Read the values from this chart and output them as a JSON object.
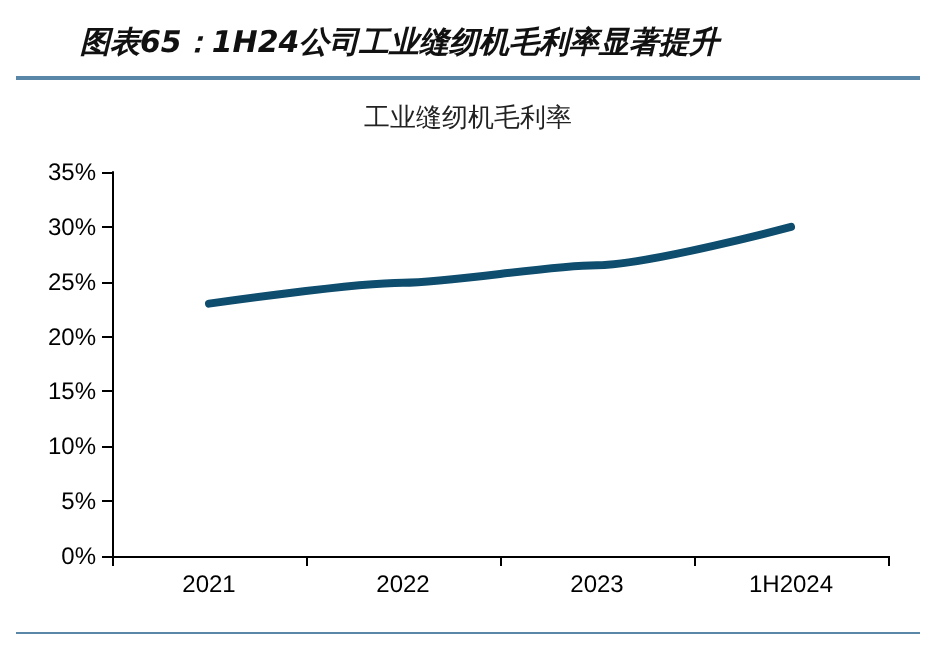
{
  "chart_data": {
    "type": "line",
    "title": "图表65：1H24公司工业缝纫机毛利率显著提升",
    "subtitle": "工业缝纫机毛利率",
    "categories": [
      "2021",
      "2022",
      "2023",
      "1H2024"
    ],
    "series": [
      {
        "color": "#0e4d6e",
        "values": [
          23.0,
          24.9,
          26.5,
          30.0
        ]
      }
    ],
    "ylim": [
      0,
      35
    ],
    "yticks": [
      {
        "value": 0,
        "label": "0%"
      },
      {
        "value": 5,
        "label": "5%"
      },
      {
        "value": 10,
        "label": "10%"
      },
      {
        "value": 15,
        "label": "15%"
      },
      {
        "value": 20,
        "label": "20%"
      },
      {
        "value": 25,
        "label": "25%"
      },
      {
        "value": 30,
        "label": "30%"
      },
      {
        "value": 35,
        "label": "35%"
      }
    ],
    "grid": false,
    "marker": "none",
    "line_style": "solid"
  }
}
